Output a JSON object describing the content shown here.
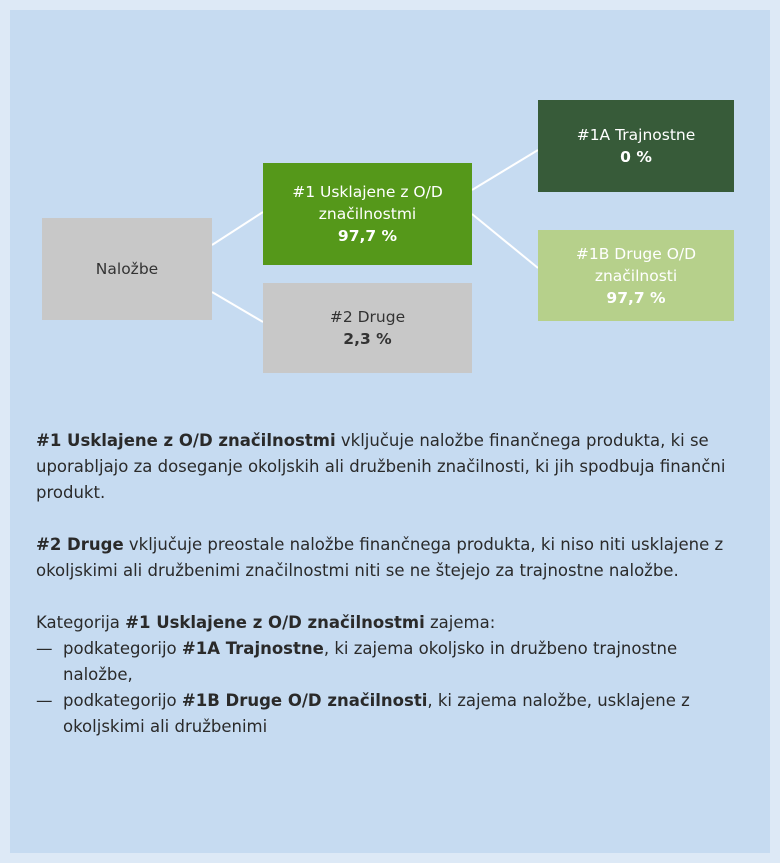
{
  "nodes": [
    {
      "label": "Naložbe"
    },
    {
      "label": "#1 Usklajene z O/D značilnostmi",
      "value": "97,7 %"
    },
    {
      "label": "#2 Druge",
      "value": "2,3 %"
    },
    {
      "label": "#1A Trajnostne",
      "value": "0 %"
    },
    {
      "label": "#1B Druge O/D značilnosti",
      "value": "97,7 %"
    }
  ],
  "legend": [
    {
      "term": "#1 Usklajene z O/D značilnostmi",
      "text": " vključuje naložbe finančnega produkta, ki se uporabljajo za doseganje okoljskih ali družbenih značilnosti, ki jih spodbuja finančni produkt."
    },
    {
      "term": "#2 Druge",
      "text": " vključuje preostale naložbe finančnega produkta, ki niso niti usklajene z okoljskimi ali družbenimi značilnostmi niti se ne štejejo za trajnostne naložbe."
    }
  ],
  "category": {
    "before": "Kategorija ",
    "term": "#1 Usklajene z O/D značilnostmi",
    "after": " zajema:",
    "items": [
      {
        "marker": "—",
        "before": "podkategorijo ",
        "term": "#1A Trajnostne",
        "after": ", ki zajema okoljsko in družbeno trajno­stne naložbe,"
      },
      {
        "marker": "—",
        "before": "podkategorijo ",
        "term": "#1B Druge O/D značilnosti",
        "after": ", ki zajema naložbe, usklajene z okoljskimi ali družbenimi"
      }
    ]
  }
}
